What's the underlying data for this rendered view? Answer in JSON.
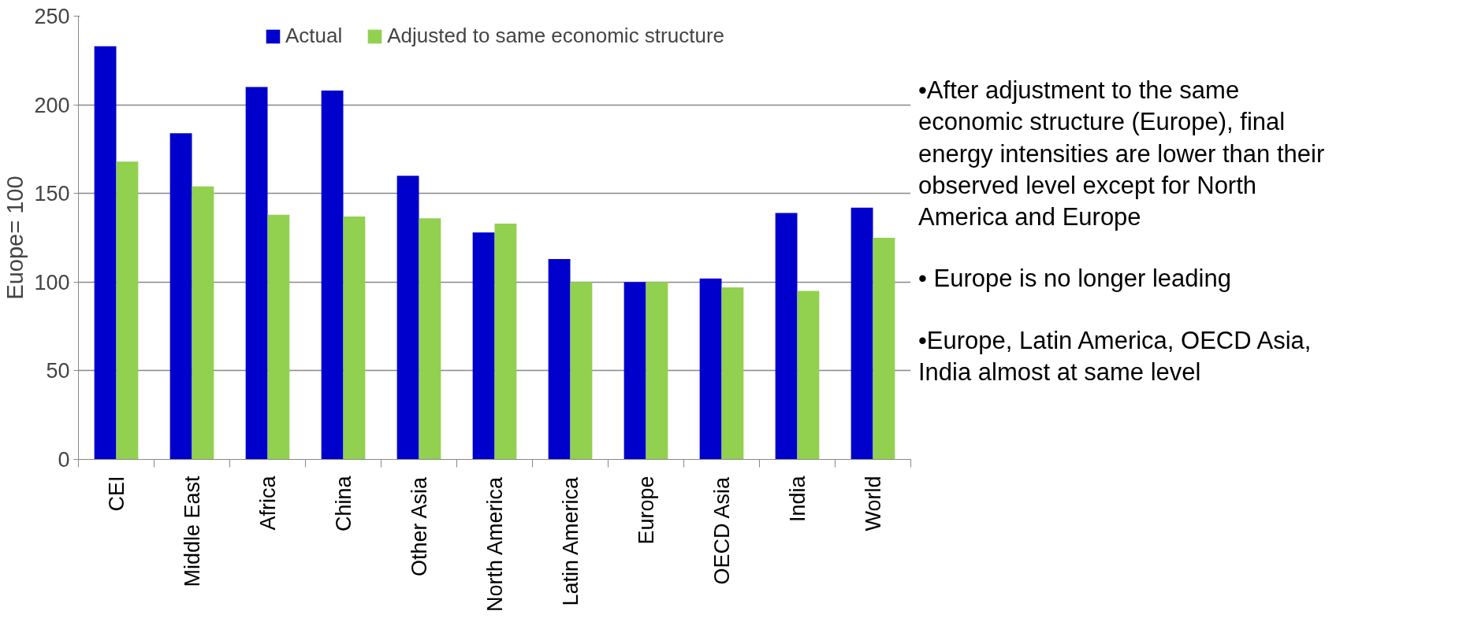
{
  "chart_data": {
    "type": "bar",
    "ylabel": "Euope= 100",
    "categories": [
      "CEI",
      "Middle East",
      "Africa",
      "China",
      "Other Asia",
      "North America",
      "Latin America",
      "Europe",
      "OECD Asia",
      "India",
      "World"
    ],
    "series": [
      {
        "name": "Actual",
        "color": "#0000cc",
        "values": [
          233,
          184,
          210,
          208,
          160,
          128,
          113,
          100,
          102,
          139,
          142
        ]
      },
      {
        "name": "Adjusted to same economic structure",
        "color": "#92d050",
        "values": [
          168,
          154,
          138,
          137,
          136,
          133,
          100,
          100,
          97,
          95,
          125
        ]
      }
    ],
    "ylim": [
      0,
      250
    ],
    "yticks": [
      0,
      50,
      100,
      150,
      200,
      250
    ],
    "grid": "y",
    "legend": "top",
    "annotations": [
      "•After adjustment to the same economic structure (Europe), final energy intensities are lower than their observed level except for North America and Europe",
      "• Europe is no longer leading",
      "•Europe, Latin America, OECD Asia, India almost at same level"
    ]
  }
}
